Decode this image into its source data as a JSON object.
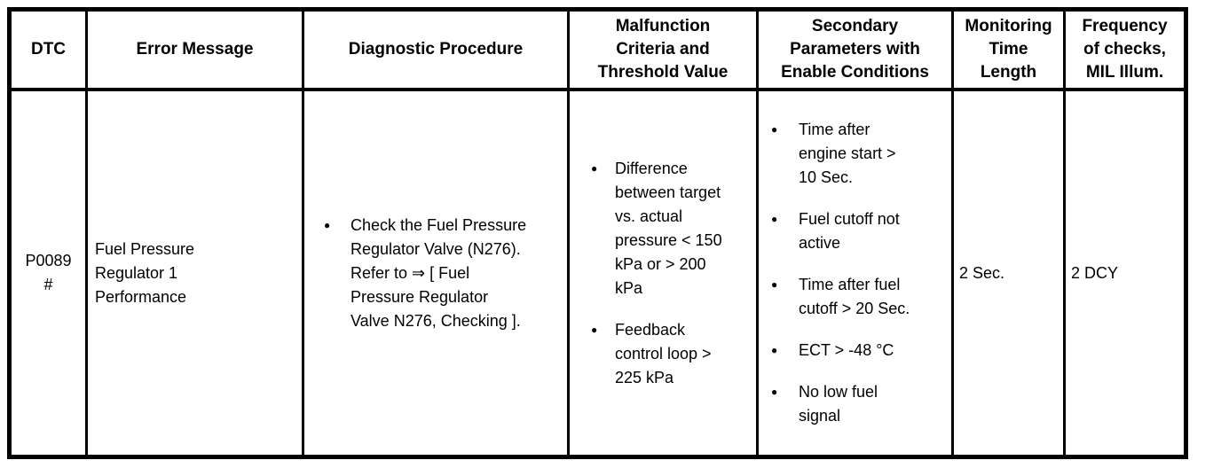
{
  "colors": {
    "border": "#000000",
    "background": "#ffffff",
    "text": "#000000"
  },
  "table": {
    "columns": [
      {
        "key": "dtc",
        "label": "DTC"
      },
      {
        "key": "error_message",
        "label": "Error Message"
      },
      {
        "key": "diagnostic_procedure",
        "label": "Diagnostic Procedure"
      },
      {
        "key": "malfunction_criteria",
        "label": "Malfunction\nCriteria and\nThreshold Value"
      },
      {
        "key": "secondary_parameters",
        "label": "Secondary\nParameters with\nEnable Conditions"
      },
      {
        "key": "monitoring_time",
        "label": "Monitoring\nTime\nLength"
      },
      {
        "key": "frequency",
        "label": "Frequency\nof checks,\nMIL Illum."
      }
    ],
    "rows": [
      {
        "dtc": "P0089\n#",
        "error_message": "Fuel Pressure\nRegulator 1\nPerformance",
        "diagnostic_procedure": [
          "Check the Fuel Pressure\nRegulator Valve (N276).\nRefer to ⇒ [ Fuel\nPressure Regulator\nValve N276, Checking ]."
        ],
        "malfunction_criteria": [
          "Difference\nbetween target\nvs. actual\npressure < 150\nkPa or > 200\nkPa",
          "Feedback\ncontrol loop >\n225 kPa"
        ],
        "secondary_parameters": [
          "Time after\nengine start >\n10 Sec.",
          "Fuel cutoff not\nactive",
          "Time after fuel\ncutoff > 20 Sec.",
          "ECT > -48 °C",
          "No low fuel\nsignal"
        ],
        "monitoring_time": "2 Sec.",
        "frequency": "2 DCY"
      }
    ]
  }
}
